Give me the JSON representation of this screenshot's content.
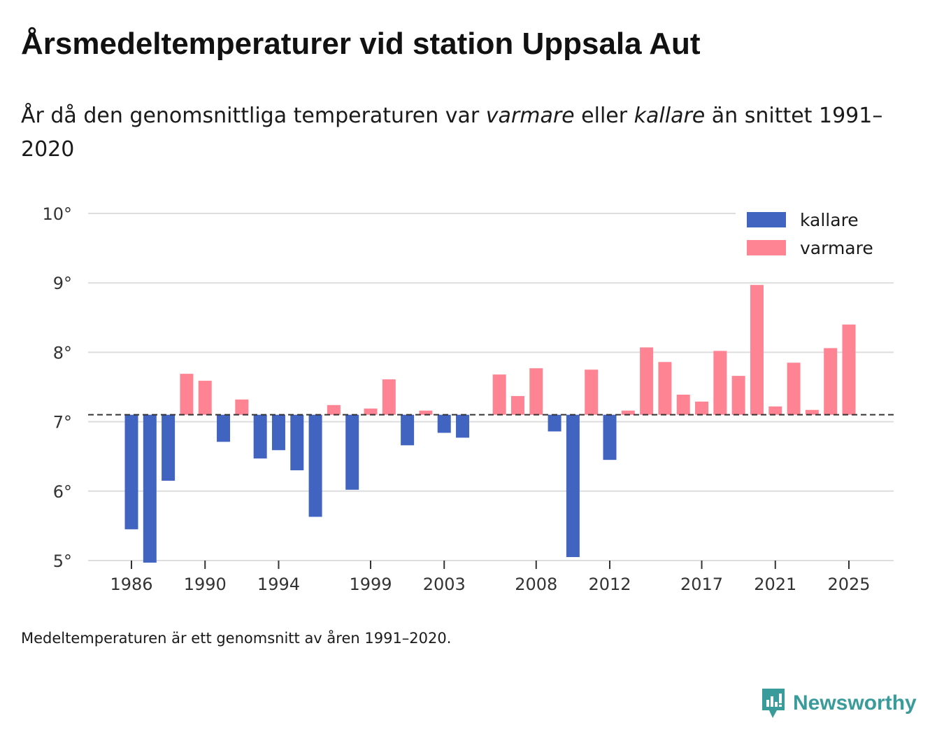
{
  "title": "Årsmedeltemperaturer vid station Uppsala Aut",
  "subtitle": {
    "part1": "År då den genomsnittliga temperaturen var ",
    "warm_word": "varmare",
    "part2": " eller ",
    "cold_word": "kallare",
    "part3": " än snittet 1991–2020"
  },
  "footnote": "Medeltemperaturen är ett genomsnitt av åren 1991–2020.",
  "brand": "Newsworthy",
  "colors": {
    "cold": "#4164c1",
    "warm": "#ff8493",
    "grid": "#dddddd",
    "baseline": "#333333",
    "brand": "#3a9b9b"
  },
  "chart_data": {
    "type": "bar",
    "baseline": 7.1,
    "ylim": [
      5,
      10
    ],
    "yticks": [
      5,
      6,
      7,
      8,
      9,
      10
    ],
    "ytick_suffix": "°",
    "xticks": [
      1986,
      1990,
      1994,
      1999,
      2003,
      2008,
      2012,
      2017,
      2021,
      2025
    ],
    "legend": [
      {
        "key": "cold",
        "label": "kallare"
      },
      {
        "key": "warm",
        "label": "varmare"
      }
    ],
    "legend_position": "top-right",
    "series": [
      {
        "year": 1986,
        "value": 5.45
      },
      {
        "year": 1987,
        "value": 4.97
      },
      {
        "year": 1988,
        "value": 6.15
      },
      {
        "year": 1989,
        "value": 7.69
      },
      {
        "year": 1990,
        "value": 7.59
      },
      {
        "year": 1991,
        "value": 6.71
      },
      {
        "year": 1992,
        "value": 7.32
      },
      {
        "year": 1993,
        "value": 6.47
      },
      {
        "year": 1994,
        "value": 6.59
      },
      {
        "year": 1995,
        "value": 6.3
      },
      {
        "year": 1996,
        "value": 5.63
      },
      {
        "year": 1997,
        "value": 7.24
      },
      {
        "year": 1998,
        "value": 6.02
      },
      {
        "year": 1999,
        "value": 7.19
      },
      {
        "year": 2000,
        "value": 7.61
      },
      {
        "year": 2001,
        "value": 6.66
      },
      {
        "year": 2002,
        "value": 7.16
      },
      {
        "year": 2003,
        "value": 6.84
      },
      {
        "year": 2004,
        "value": 6.77
      },
      {
        "year": 2005,
        "value": 7.1
      },
      {
        "year": 2006,
        "value": 7.68
      },
      {
        "year": 2007,
        "value": 7.37
      },
      {
        "year": 2008,
        "value": 7.77
      },
      {
        "year": 2009,
        "value": 6.86
      },
      {
        "year": 2010,
        "value": 5.05
      },
      {
        "year": 2011,
        "value": 7.75
      },
      {
        "year": 2012,
        "value": 6.45
      },
      {
        "year": 2013,
        "value": 7.16
      },
      {
        "year": 2014,
        "value": 8.07
      },
      {
        "year": 2015,
        "value": 7.86
      },
      {
        "year": 2016,
        "value": 7.39
      },
      {
        "year": 2017,
        "value": 7.29
      },
      {
        "year": 2018,
        "value": 8.02
      },
      {
        "year": 2019,
        "value": 7.66
      },
      {
        "year": 2020,
        "value": 8.97
      },
      {
        "year": 2021,
        "value": 7.22
      },
      {
        "year": 2022,
        "value": 7.85
      },
      {
        "year": 2023,
        "value": 7.17
      },
      {
        "year": 2024,
        "value": 8.06
      },
      {
        "year": 2025,
        "value": 8.4
      }
    ]
  }
}
